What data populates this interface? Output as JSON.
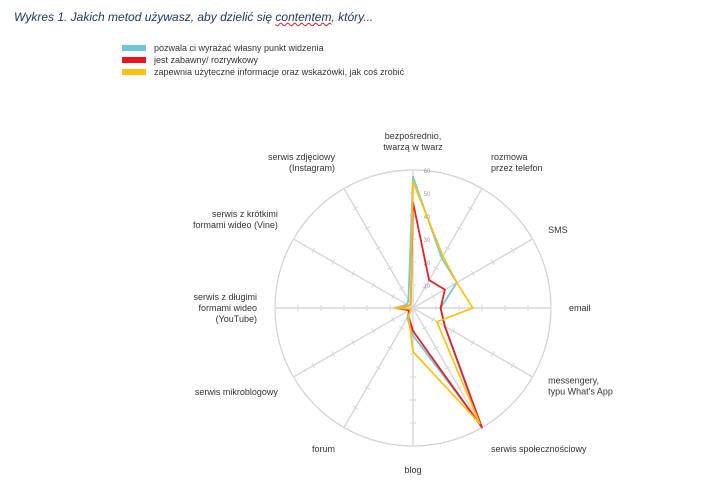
{
  "document": {
    "title_prefix": "Wykres 1. Jakich metod używasz, aby dzielić się ",
    "title_underlined": "contentem",
    "title_suffix": ", który..."
  },
  "chart_data": {
    "type": "radar",
    "axes": [
      [
        "bezpośrednio,",
        "twarzą w twarz"
      ],
      [
        "rozmowa",
        "przez telefon"
      ],
      [
        "SMS"
      ],
      [
        "email"
      ],
      [
        "messengery,",
        "typu What's App"
      ],
      [
        "serwis społecznościowy"
      ],
      [
        "blog"
      ],
      [
        "forum"
      ],
      [
        "serwis mikroblogowy"
      ],
      [
        "serwis z długimi",
        "formami wideo",
        "(YouTube)"
      ],
      [
        "serwis z krótkimi",
        "formami wideo (Vine)"
      ],
      [
        "serwis zdjęciowy",
        "(Instagram)"
      ]
    ],
    "ticks": [
      10,
      20,
      30,
      40,
      50,
      60
    ],
    "rmax": 60,
    "series": [
      {
        "name": "pozwala ci wyrażać własny punkt widzenia",
        "color": "#6ec6d8",
        "values": [
          57,
          25,
          22,
          12,
          16,
          58,
          12,
          5,
          2,
          8,
          3,
          4
        ]
      },
      {
        "name": "jest zabawny/ rozrywkowy",
        "color": "#e8141e",
        "values": [
          46,
          14,
          16,
          12,
          16,
          60,
          10,
          4,
          2,
          7,
          2,
          2
        ]
      },
      {
        "name": "zapewnia użyteczne informacje oraz wskazówki, jak coś zrobić",
        "color": "#fec10f",
        "values": [
          55,
          26,
          22,
          26,
          12,
          58,
          19,
          4,
          1,
          8,
          2,
          2
        ]
      }
    ]
  }
}
